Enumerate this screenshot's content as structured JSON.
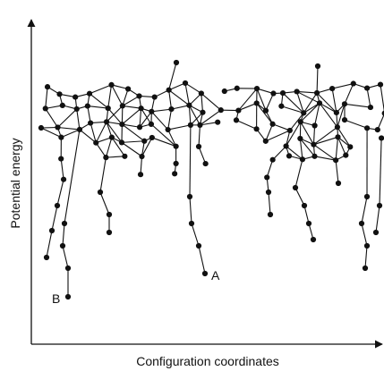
{
  "axes": {
    "y_label": "Potential energy",
    "x_label": "Configuration coordinates"
  },
  "labels": {
    "a": "A",
    "b": "B"
  }
}
